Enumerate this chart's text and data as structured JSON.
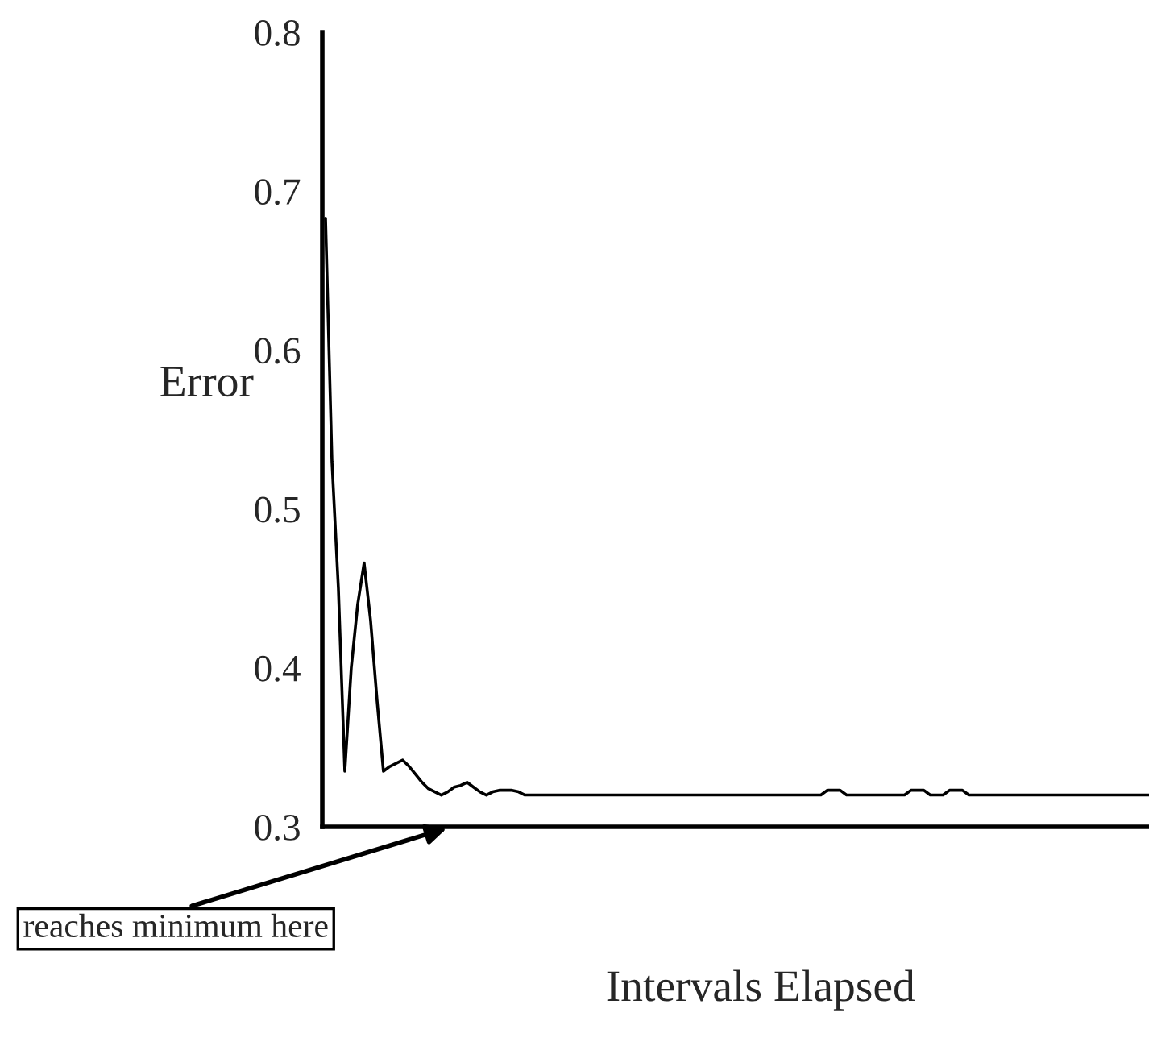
{
  "chart_data": {
    "type": "line",
    "xlabel": "Intervals Elapsed",
    "ylabel": "Error",
    "annotations": [
      "reaches minimum here"
    ],
    "categories": [
      null,
      null,
      null,
      null,
      null,
      null,
      null,
      null,
      null,
      null,
      null,
      null,
      null,
      null,
      null,
      null,
      null,
      null,
      null,
      null,
      null,
      null,
      null,
      null,
      null,
      null,
      null,
      null,
      null,
      null,
      null,
      null,
      null,
      null,
      null,
      null,
      null,
      null,
      null,
      null,
      null,
      null,
      null,
      null,
      null,
      null,
      null,
      null,
      null,
      null,
      null,
      null,
      null,
      null,
      null,
      null,
      null,
      null,
      null,
      null,
      null,
      null,
      null,
      null,
      null,
      null,
      null,
      null,
      null,
      null,
      null,
      null,
      null,
      null,
      null,
      null,
      null,
      null,
      null,
      null,
      null,
      null,
      null,
      null,
      null,
      null,
      null,
      null,
      null,
      null,
      null,
      null,
      null,
      null,
      null,
      null,
      null,
      null,
      null,
      null,
      null,
      null,
      null,
      null,
      null,
      null,
      null,
      null,
      null,
      null,
      null,
      null,
      null,
      null,
      null,
      null,
      null,
      null,
      null,
      null,
      null,
      null,
      null,
      null,
      null,
      null,
      null,
      null,
      null
    ],
    "series": [
      {
        "color": "#000000",
        "values": [
          0.683,
          0.53,
          0.45,
          0.335,
          0.4,
          0.44,
          0.466,
          0.43,
          0.38,
          0.335,
          0.338,
          0.34,
          0.342,
          0.338,
          0.333,
          0.328,
          0.324,
          0.322,
          0.32,
          0.322,
          0.325,
          0.326,
          0.328,
          0.325,
          0.322,
          0.32,
          0.322,
          0.323,
          0.323,
          0.323,
          0.322,
          0.32,
          0.32,
          0.32,
          0.32,
          0.32,
          0.32,
          0.32,
          0.32,
          0.32,
          0.32,
          0.32,
          0.32,
          0.32,
          0.32,
          0.32,
          0.32,
          0.32,
          0.32,
          0.32,
          0.32,
          0.32,
          0.32,
          0.32,
          0.32,
          0.32,
          0.32,
          0.32,
          0.32,
          0.32,
          0.32,
          0.32,
          0.32,
          0.32,
          0.32,
          0.32,
          0.32,
          0.32,
          0.32,
          0.32,
          0.32,
          0.32,
          0.32,
          0.32,
          0.32,
          0.32,
          0.32,
          0.32,
          0.323,
          0.323,
          0.323,
          0.32,
          0.32,
          0.32,
          0.32,
          0.32,
          0.32,
          0.32,
          0.32,
          0.32,
          0.32,
          0.323,
          0.323,
          0.323,
          0.32,
          0.32,
          0.32,
          0.323,
          0.323,
          0.323,
          0.32,
          0.32,
          0.32,
          0.32,
          0.32,
          0.32,
          0.32,
          0.32,
          0.32,
          0.32,
          0.32,
          0.32,
          0.32,
          0.32,
          0.32,
          0.32,
          0.32,
          0.32,
          0.32,
          0.32,
          0.32,
          0.32,
          0.32,
          0.32,
          0.32,
          0.32,
          0.32,
          0.32,
          0.32
        ]
      }
    ],
    "ylim": [
      0.3,
      0.8
    ],
    "yticks": [
      0.3,
      0.4,
      0.5,
      0.6,
      0.7,
      0.8
    ],
    "grid": false,
    "legend": false,
    "marker": "none",
    "line_style": "solid"
  }
}
